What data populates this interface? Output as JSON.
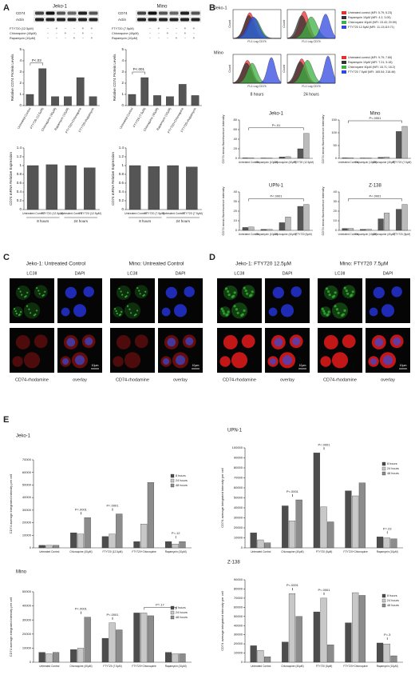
{
  "figure": {
    "panels": [
      "A",
      "B",
      "C",
      "D",
      "E"
    ],
    "a": {
      "jeko": {
        "title": "Jeko-1",
        "blot": [
          "CD74",
          "Actin"
        ],
        "treatments": [
          {
            "label": "FTY720 (12.5µM)",
            "signs": [
              "-",
              "+",
              "-",
              "-",
              "+",
              "+"
            ]
          },
          {
            "label": "Chloroquine (40µM)",
            "signs": [
              "-",
              "-",
              "+",
              "-",
              "+",
              "-"
            ]
          },
          {
            "label": "Rapamycin (10µM)",
            "signs": [
              "-",
              "-",
              "-",
              "+",
              "-",
              "+"
            ]
          }
        ]
      },
      "mino": {
        "title": "Mino",
        "blot": [
          "CD74",
          "Actin"
        ],
        "treatments": [
          {
            "label": "FTY720 (7.5µM)",
            "signs": [
              "-",
              "+",
              "-",
              "-",
              "+",
              "+"
            ]
          },
          {
            "label": "Chloroquine (40µM)",
            "signs": [
              "-",
              "-",
              "+",
              "-",
              "+",
              "-"
            ]
          },
          {
            "label": "Rapamycin (10µM)",
            "signs": [
              "-",
              "-",
              "-",
              "+",
              "-",
              "+"
            ]
          }
        ]
      }
    },
    "b": {
      "cell_lines": [
        "Jeko-1",
        "Mino"
      ],
      "count_label": "Count",
      "x_label": "FL1 Log CD74",
      "times": [
        "8 hours",
        "24 hours"
      ],
      "legend_jeko": [
        "Untreated control (MFI: 5.79; 5.23)",
        "Rapamycin 10µM (MFI: 4.2; 3.05)",
        "Chloroquine 40µM (MFI: 15.43; 20.59)",
        "FTY720 12.5µM (MFI: 11.13;119.71)"
      ],
      "legend_mino": [
        "Untreated control (MFI: 9.79; 7.65)",
        "Rapamycin 10µM (MFI: 7.21; 5.18)",
        "Chloroquine 40µM (MFI: 16.71; 18.2)",
        "FTY720 7.5µM (MFI: 165.54; 218.46)"
      ]
    },
    "c": {
      "titles": [
        "Jeko-1: Untreated Control",
        "Mino: Untreated Control"
      ],
      "labels": [
        "LC3II",
        "DAPI",
        "CD74-rhodamine",
        "overlay"
      ],
      "scale_bar": "10μm"
    },
    "d": {
      "titles": [
        "Jeko-1: FTY720 12.5µM",
        "Mino: FTY720 7.5µM"
      ]
    }
  },
  "chart_data": [
    {
      "type": "bar",
      "ylabel": "Relative CD74 Protein Levels",
      "categories": [
        "Untreated Control",
        "FTY720 (12.5µM)",
        "Chloroquine (40µM)",
        "Rapamycin (10µM)",
        "FTY720+Chloroquine",
        "FTY720+Rapamycin"
      ],
      "values": [
        1,
        3.3,
        0.8,
        0.8,
        2.5,
        0.8
      ],
      "color": "#555555",
      "ylim": [
        0,
        5
      ],
      "yticks": [
        0,
        1,
        2,
        3,
        4,
        5
      ],
      "annotations": [
        "P<.03"
      ]
    },
    {
      "type": "bar",
      "ylabel": "Relative CD74 Protein Levels",
      "categories": [
        "Untreated Control",
        "FTY720 (7.5µM)",
        "Chloroquine (40µM)",
        "Rapamycin (10µM)",
        "FTY720+Chloroquine",
        "FTY720+Rapamycin"
      ],
      "values": [
        1,
        2.5,
        0.9,
        0.8,
        1.9,
        0.9
      ],
      "color": "#555555",
      "ylim": [
        0,
        5
      ],
      "yticks": [
        0,
        1,
        2,
        3,
        4,
        5
      ],
      "annotations": [
        "P<.001"
      ]
    },
    {
      "type": "bar",
      "ylabel": "CD74 mRNA Relative Expression",
      "categories": [
        "Untreated Control",
        "FTY720 (12.5µM)",
        "Untreated Control",
        "FTY720 (12.5µM)"
      ],
      "values": [
        1,
        1.02,
        1,
        0.95
      ],
      "color": "#555555",
      "ylim": [
        0,
        1.4
      ],
      "yticks": [
        0,
        0.2,
        0.4,
        0.6,
        0.8,
        1,
        1.2,
        1.4
      ],
      "groups": [
        "8 hours",
        "24 hours"
      ]
    },
    {
      "type": "bar",
      "ylabel": "CD74 mRNA Relative Expression",
      "categories": [
        "Untreated Control",
        "FTY720 (7.5µM)",
        "Untreated Control",
        "FTY720 (7.5µM)"
      ],
      "values": [
        1,
        0.98,
        1,
        0.97
      ],
      "color": "#555555",
      "ylim": [
        0,
        1.4
      ],
      "yticks": [
        0,
        0.2,
        0.4,
        0.6,
        0.8,
        1,
        1.2,
        1.4
      ],
      "groups": [
        "8 hours",
        "24 hours"
      ]
    },
    {
      "type": "bar",
      "title": "Jeko-1",
      "ylabel": "CD74 mean fluorescence intensity",
      "categories": [
        "Untreated Control",
        "Rapamycin (10µM)",
        "Chloroquine (40µM)",
        "FTY720 (12.5µM)"
      ],
      "series": [
        {
          "color": "#555555",
          "values": [
            1,
            0.8,
            3,
            20
          ]
        },
        {
          "color": "#bbbbbb",
          "values": [
            1,
            0.7,
            3.5,
            52
          ]
        }
      ],
      "ylim": [
        0,
        80
      ],
      "yticks": [
        0,
        20,
        40,
        60,
        80
      ],
      "annotations": [
        "P<.01"
      ]
    },
    {
      "type": "bar",
      "title": "Mino",
      "ylabel": "CD74 mean fluorescence intensity",
      "categories": [
        "Untreated Control",
        "Rapamycin (10µM)",
        "Chloroquine (40µM)",
        "FTY720 (7.5µM)"
      ],
      "series": [
        {
          "color": "#555555",
          "values": [
            2,
            1.5,
            4,
            105
          ]
        },
        {
          "color": "#bbbbbb",
          "values": [
            2,
            1.5,
            5,
            125
          ]
        }
      ],
      "ylim": [
        0,
        150
      ],
      "yticks": [
        0,
        50,
        100,
        150
      ],
      "annotations": [
        "P<.0001"
      ]
    },
    {
      "type": "bar",
      "title": "UPN-1",
      "ylabel": "CD74 mean fluorescence intensity",
      "categories": [
        "Untreated Control",
        "Rapamycin (10µM)",
        "Chloroquine (40µM)",
        "FTY720 (5µM)"
      ],
      "series": [
        {
          "color": "#555555",
          "values": [
            3,
            1,
            8,
            25
          ]
        },
        {
          "color": "#bbbbbb",
          "values": [
            3.5,
            1,
            14,
            27
          ]
        }
      ],
      "ylim": [
        0,
        40
      ],
      "yticks": [
        0,
        10,
        20,
        30,
        40
      ],
      "annotations": [
        "P<.0001"
      ]
    },
    {
      "type": "bar",
      "title": "Z-138",
      "ylabel": "CD74 mean fluorescence intensity",
      "categories": [
        "Untreated Control",
        "Rapamycin (10µM)",
        "Chloroquine (40µM)",
        "FTY720 (5µM)"
      ],
      "series": [
        {
          "color": "#555555",
          "values": [
            2,
            1,
            12,
            22
          ]
        },
        {
          "color": "#bbbbbb",
          "values": [
            2,
            1.2,
            18,
            27
          ]
        }
      ],
      "ylim": [
        0,
        40
      ],
      "yticks": [
        0,
        10,
        20,
        30,
        40
      ],
      "annotations": [
        "P<.0001"
      ]
    },
    {
      "type": "bar",
      "title": "Jeko-1",
      "ylabel": "CD74 average integrated intensity per cell",
      "categories": [
        "Untreated Control",
        "Chloroquine (40µM)",
        "FTY720 (12.5µM)",
        "FTY720+Chloroquine",
        "Rapamycin (10µM)"
      ],
      "series": [
        {
          "name": "8 hours",
          "color": "#4d4d4d",
          "values": [
            2000,
            12000,
            9000,
            5000,
            5000
          ]
        },
        {
          "name": "24 hours",
          "color": "#c8c8c8",
          "values": [
            2000,
            11000,
            11000,
            19000,
            3000
          ]
        },
        {
          "name": "48 hours",
          "color": "#8c8c8c",
          "values": [
            2000,
            24000,
            27000,
            52000,
            5000
          ]
        }
      ],
      "ylim": [
        0,
        70000
      ],
      "yticks": [
        0,
        10000,
        20000,
        30000,
        40000,
        50000,
        60000,
        70000
      ],
      "annotations": [
        "P<.0001",
        "P<.0001",
        "P=.12"
      ]
    },
    {
      "type": "bar",
      "title": "UPN-1",
      "ylabel": "CD74 average integrated intensity per cell",
      "categories": [
        "Untreated Control",
        "Chloroquine (40µM)",
        "FTY720 (5µM)",
        "FTY720+Chloroquine",
        "Rapamycin (10µM)"
      ],
      "series": [
        {
          "name": "8 hours",
          "color": "#4d4d4d",
          "values": [
            15000,
            42000,
            95000,
            57000,
            11000
          ]
        },
        {
          "name": "24 hours",
          "color": "#c8c8c8",
          "values": [
            8000,
            27000,
            41000,
            52000,
            10000
          ]
        },
        {
          "name": "48 hours",
          "color": "#8c8c8c",
          "values": [
            5000,
            48000,
            26000,
            65000,
            9000
          ]
        }
      ],
      "ylim": [
        0,
        100000
      ],
      "yticks": [
        0,
        10000,
        20000,
        30000,
        40000,
        50000,
        60000,
        70000,
        80000,
        90000,
        100000
      ],
      "annotations": [
        "P<.0001",
        "P<.0001",
        "P=.23"
      ]
    },
    {
      "type": "bar",
      "title": "Mino",
      "ylabel": "CD74 average integrated intensity per cell",
      "categories": [
        "Untreated Control",
        "Chloroquine (40µM)",
        "FTY720 (7.5µM)",
        "FTY720+Chloroquine",
        "Rapamycin (10µM)"
      ],
      "series": [
        {
          "name": "8 hours",
          "color": "#4d4d4d",
          "values": [
            7000,
            9000,
            17000,
            35000,
            7000
          ]
        },
        {
          "name": "24 hours",
          "color": "#c8c8c8",
          "values": [
            6000,
            10000,
            28000,
            35000,
            6000
          ]
        },
        {
          "name": "48 hours",
          "color": "#8c8c8c",
          "values": [
            7000,
            32000,
            23000,
            33000,
            6000
          ]
        }
      ],
      "ylim": [
        0,
        50000
      ],
      "yticks": [
        0,
        10000,
        20000,
        30000,
        40000,
        50000
      ],
      "annotations": [
        "P<.0001",
        "P<.0001",
        "P=.17"
      ]
    },
    {
      "type": "bar",
      "title": "Z-138",
      "ylabel": "CD74 average integrated intensity per cell",
      "categories": [
        "Untreated Control",
        "Chloroquine (40µM)",
        "FTY720 (5µM)",
        "FTY720+Chloroquine",
        "Rapamycin (10µM)"
      ],
      "series": [
        {
          "name": "8 hours",
          "color": "#4d4d4d",
          "values": [
            18000,
            22000,
            55000,
            43000,
            21000
          ]
        },
        {
          "name": "24 hours",
          "color": "#c8c8c8",
          "values": [
            13000,
            75000,
            70000,
            76000,
            20000
          ]
        },
        {
          "name": "48 hours",
          "color": "#8c8c8c",
          "values": [
            6000,
            50000,
            19000,
            73000,
            7000
          ]
        }
      ],
      "ylim": [
        0,
        90000
      ],
      "yticks": [
        0,
        10000,
        20000,
        30000,
        40000,
        50000,
        60000,
        70000,
        80000,
        90000
      ],
      "annotations": [
        "P<.0001",
        "P<.0001",
        "P=.3"
      ]
    }
  ]
}
